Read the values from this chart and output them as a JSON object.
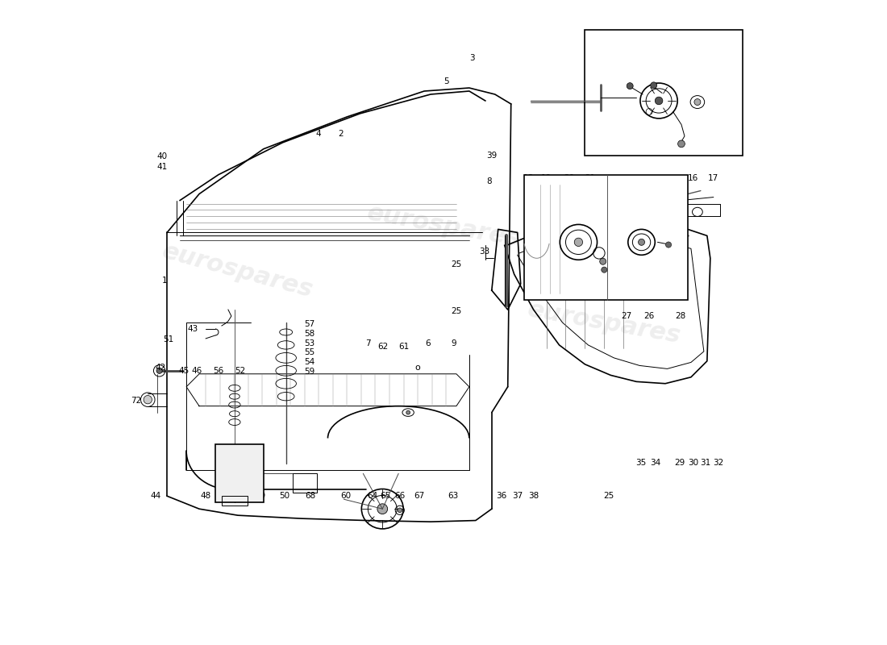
{
  "title": "",
  "background_color": "#ffffff",
  "line_color": "#000000",
  "watermark_color": "#d0d0d0",
  "watermark_text": "eurospares",
  "fig_width": 11.0,
  "fig_height": 8.0,
  "dpi": 100
}
